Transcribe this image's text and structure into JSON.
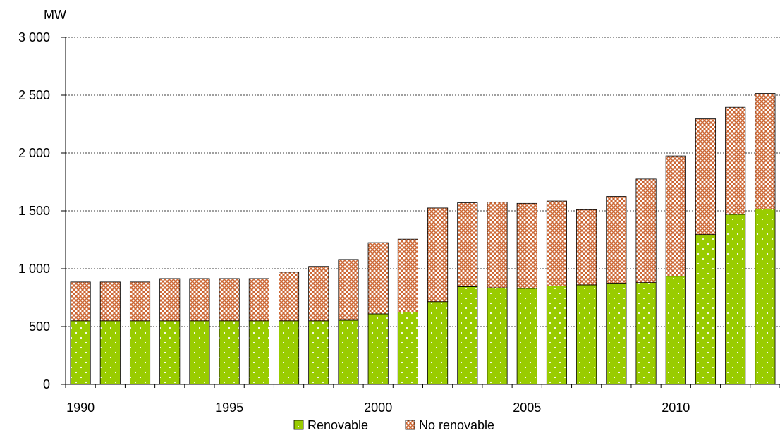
{
  "chart_data": {
    "type": "bar",
    "stacked": true,
    "ylabel": "MW",
    "ylim": [
      0,
      3000
    ],
    "yticks": [
      0,
      500,
      1000,
      1500,
      2000,
      2500,
      3000
    ],
    "ytick_labels": [
      "0",
      "500",
      "1 000",
      "1 500",
      "2 000",
      "2 500",
      "3 000"
    ],
    "x": [
      1990,
      1991,
      1992,
      1993,
      1994,
      1995,
      1996,
      1997,
      1998,
      1999,
      2000,
      2001,
      2002,
      2003,
      2004,
      2005,
      2006,
      2007,
      2008,
      2009,
      2010,
      2011,
      2012,
      2013
    ],
    "xtick_labels": [
      "1990",
      "1995",
      "2000",
      "2005",
      "2010"
    ],
    "grid": "horizontal dotted",
    "legend_position": "bottom",
    "series": [
      {
        "name": "Renovable",
        "color": "#99cc00",
        "pattern": "white-dots",
        "values": [
          550,
          550,
          550,
          550,
          550,
          550,
          550,
          550,
          550,
          555,
          610,
          625,
          715,
          845,
          835,
          830,
          850,
          860,
          870,
          880,
          935,
          1295,
          1470,
          1515
        ]
      },
      {
        "name": "No renovable",
        "color": "#cc6633",
        "pattern": "crosshatch",
        "values": [
          335,
          335,
          335,
          365,
          365,
          365,
          365,
          420,
          470,
          525,
          615,
          630,
          810,
          725,
          740,
          735,
          735,
          650,
          755,
          895,
          1040,
          1000,
          925,
          1000
        ]
      }
    ]
  }
}
